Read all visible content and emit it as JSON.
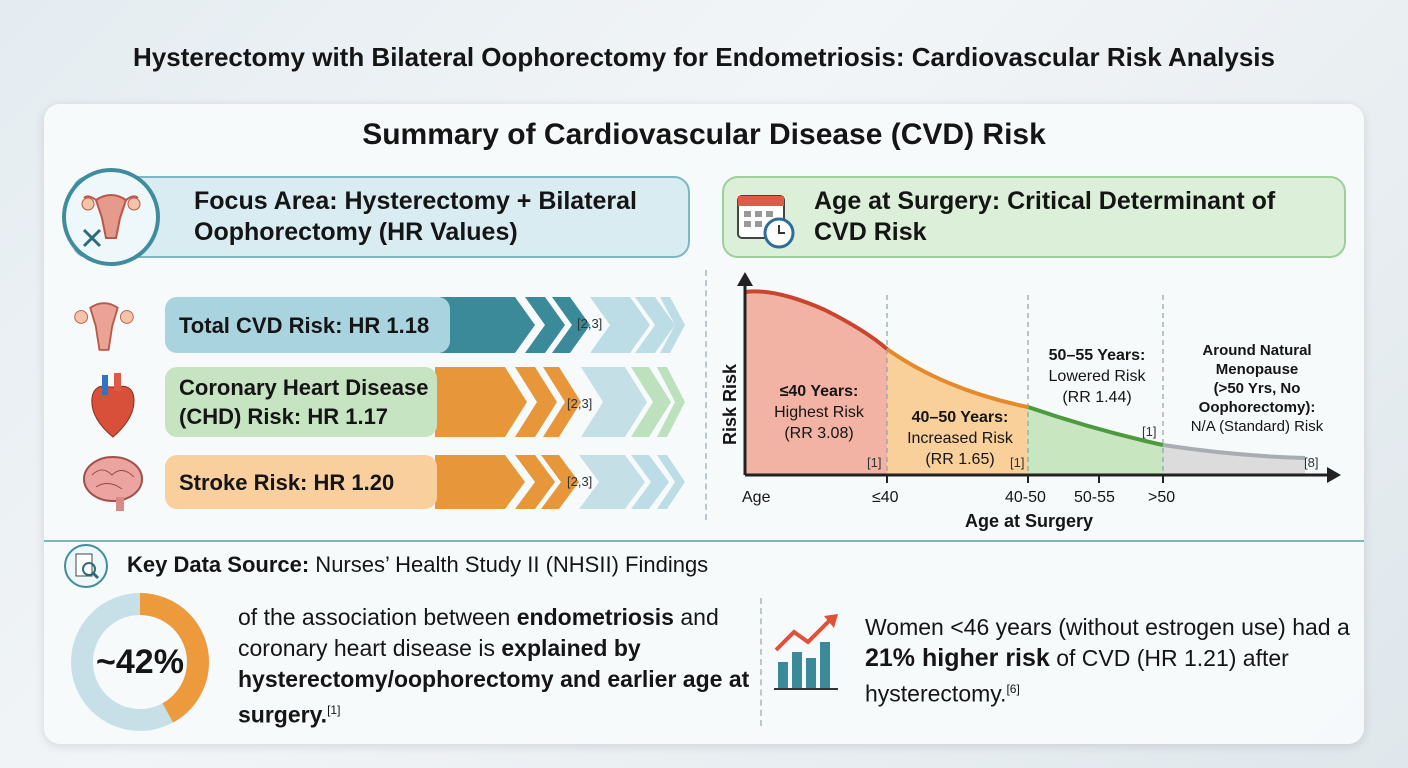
{
  "title": "Hysterectomy with Bilateral Oophorectomy for Endometriosis: Cardiovascular Risk Analysis",
  "subtitle": "Summary of Cardiovascular Disease (CVD) Risk",
  "left_panel": {
    "header": "Focus Area: Hysterectomy + Bilateral Oophorectomy (HR Values)",
    "rows": [
      {
        "label": "Total CVD Risk: HR 1.18",
        "ref": "[2,3]",
        "icon": "uterus-icon",
        "box_color": "#a9d3df",
        "arrow_color": "#3b8a9a"
      },
      {
        "label": "Coronary Heart Disease (CHD) Risk: HR 1.17",
        "ref": "[2,3]",
        "icon": "heart-icon",
        "box_color": "#c6e4c2",
        "arrow_color": "#e8963a"
      },
      {
        "label": "Stroke Risk: HR 1.20",
        "ref": "[2,3]",
        "icon": "brain-icon",
        "box_color": "#f9cf9e",
        "arrow_color": "#e8963a"
      }
    ]
  },
  "right_panel": {
    "header": "Age at Surgery: Critical Determinant of CVD Risk",
    "chart": {
      "ylabel": "Risk Risk",
      "xlabel": "Age at Surgery",
      "ticks": [
        "Age",
        "≤40",
        "40-50",
        "50-55",
        ">50"
      ],
      "zones": [
        {
          "title": "≤40 Years:",
          "desc": "Highest Risk",
          "value": "(RR 3.08)",
          "ref": "[1]",
          "color": "#f2b3a4"
        },
        {
          "title": "40–50 Years:",
          "desc": "Increased Risk",
          "value": "(RR 1.65)",
          "ref": "[1]",
          "color": "#f9cf9a"
        },
        {
          "title": "50–55 Years:",
          "desc": "Lowered Risk",
          "value": "(RR 1.44)",
          "ref": "[1]",
          "color": "#c8e6c0"
        },
        {
          "title1": "Around Natural",
          "title2": "Menopause",
          "title3": "(>50 Yrs, No",
          "title4": "Oophorectomy):",
          "desc": "N/A (Standard) Risk",
          "ref": "[8]",
          "color": "#dcdcdc"
        }
      ]
    }
  },
  "bottom": {
    "source_label": "Key Data Source:",
    "source_text": " Nurses’ Health Study II (NHSII) Findings",
    "donut": {
      "value": "~42%",
      "fraction": 0.42,
      "fill": "#ec9a3c",
      "track": "#c7e0e8"
    },
    "p1": "of the association between ",
    "p1b": "endometriosis",
    "p2": " and coronary heart disease is ",
    "p2b": "explained by hysterectomy/oophorectomy and earlier age at surgery.",
    "p2ref": "[1]",
    "q1": "Women <46 years (without estrogen use) had a ",
    "q1b": "21% higher risk",
    "q2": " of CVD (HR 1.21) after hysterectomy.",
    "q2ref": "[6]"
  }
}
